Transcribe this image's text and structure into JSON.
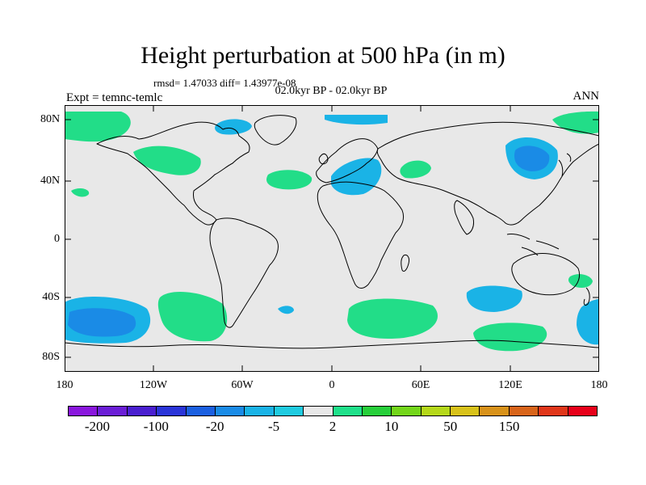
{
  "title": "Height perturbation at 500 hPa (in m)",
  "stats": "rmsd= 1.47033 diff= 1.43977e-08",
  "period": "02.0kyr BP - 02.0kyr BP",
  "expt": "Expt = temnc-temlc",
  "season": "ANN",
  "lat_ticks": [
    "80N",
    "40N",
    "0",
    "40S",
    "80S"
  ],
  "lon_ticks": [
    "180",
    "120W",
    "60W",
    "0",
    "60E",
    "120E",
    "180"
  ],
  "colorbar": {
    "colors": [
      "#8a17dd",
      "#6b1ed6",
      "#4a1fd0",
      "#2a34d8",
      "#1b5fe0",
      "#1a8be6",
      "#1ab3e6",
      "#1fcbe0",
      "#e8e8e8",
      "#1fe08a",
      "#27cf3a",
      "#73d61a",
      "#b5d81a",
      "#d8c21a",
      "#d8921a",
      "#d8641a",
      "#e0361a",
      "#e8001a"
    ],
    "labels": [
      "-200",
      "-100",
      "-20",
      "-5",
      "2",
      "10",
      "50",
      "150"
    ]
  },
  "map": {
    "background": "#e8e8e8",
    "positive_color": "#22dd88",
    "negative_color": "#1ab3e6",
    "negative_strong_color": "#1a8be6"
  }
}
